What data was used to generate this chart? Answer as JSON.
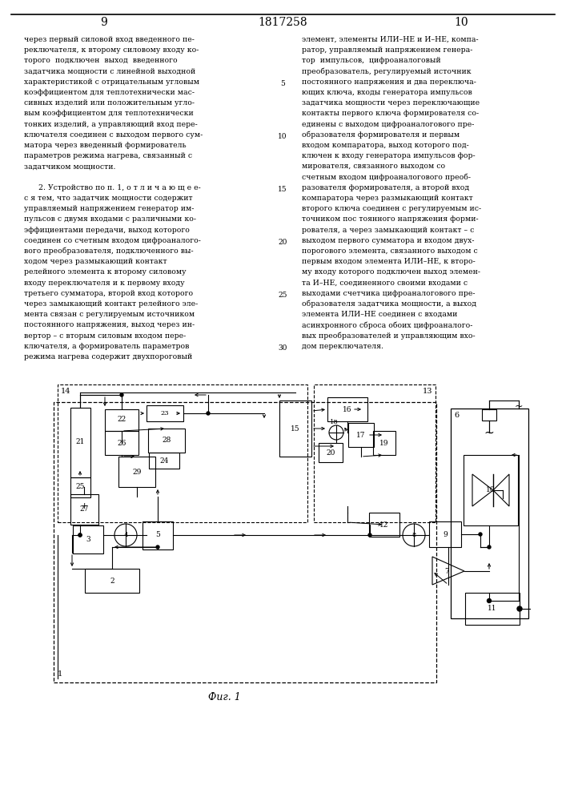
{
  "page_numbers": [
    "9",
    "1817258",
    "10"
  ],
  "left_column_text": [
    "через первый силовой вход введенного пе-",
    "реключателя, к второму силовому входу ко-",
    "торого  подключен  выход  введенного",
    "задатчика мощности с линейной выходной",
    "характеристикой с отрицательным угловым",
    "коэффициентом для теплотехнически мас-",
    "сивных изделий или положительным угло-",
    "вым коэффициентом для теплотехнически",
    "тонких изделий, а управляющий вход пере-",
    "ключателя соединен с выходом первого сум-",
    "матора через введенный формирователь",
    "параметров режима нагрева, связанный с",
    "задатчиком мощности.",
    "",
    "      2. Устройство по п. 1, о т л и ч а ю щ е е-",
    "с я тем, что задатчик мощности содержит",
    "управляемый напряжением генератор им-",
    "пульсов с двумя входами с различными ко-",
    "эффициентами передачи, выход которого",
    "соединен со счетным входом цифроаналого-",
    "вого преобразователя, подключенного вы-",
    "ходом через размыкающий контакт",
    "релейного элемента к второму силовому",
    "входу переключателя и к первому входу",
    "третьего сумматора, второй вход которого",
    "через замыкающий контакт релейного эле-",
    "мента связан с регулируемым источником",
    "постоянного напряжения, выход через ин-",
    "вертор – с вторым силовым входом пере-",
    "ключателя, а формирователь параметров",
    "режима нагрева содержит двухпороговый"
  ],
  "right_column_text": [
    "элемент, элементы ИЛИ–НЕ и И–НЕ, компа-",
    "ратор, управляемый напряжением генера-",
    "тор  импульсов,  цифроаналоговый",
    "преобразователь, регулируемый источник",
    "постоянного напряжения и два переключа-",
    "ющих ключа, входы генератора импульсов",
    "задатчика мощности через переключающие",
    "контакты первого ключа формирователя со-",
    "единены с выходом цифроаналогового пре-",
    "образователя формирователя и первым",
    "входом компаратора, выход которого под-",
    "ключен к входу генератора импульсов фор-",
    "мирователя, связанного выходом со",
    "счетным входом цифроаналогового преоб-",
    "разователя формирователя, а второй вход",
    "компаратора через размыкающий контакт",
    "второго ключа соединен с регулируемым ис-",
    "точником пос тоянного напряжения форми-",
    "рователя, а через замыкающий контакт – с",
    "выходом первого сумматора и входом двух-",
    "порогового элемента, связанного выходом с",
    "первым входом элемента ИЛИ–НЕ, к второ-",
    "му входу которого подключен выход элемен-",
    "та И–НЕ, соединенного своими входами с",
    "выходами счетчика цифроаналогового пре-",
    "образователя задатчика мощности, а выход",
    "элемента ИЛИ–НЕ соединен с входами",
    "асинхронного сброса обоих цифроаналого-",
    "вых преобразователей и управляющим вхо-",
    "дом переключателя."
  ],
  "line_numbers": [
    5,
    10,
    15,
    20,
    25,
    30
  ],
  "fig_caption": "Фиг. 1"
}
